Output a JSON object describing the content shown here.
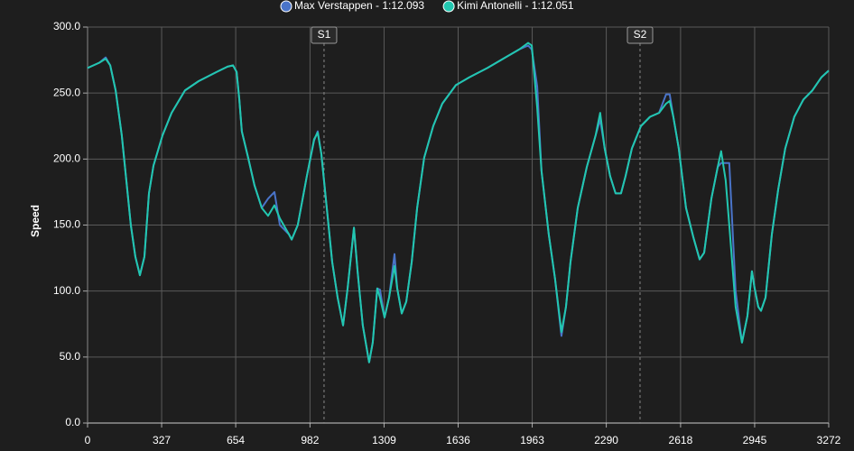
{
  "chart_data": {
    "type": "line",
    "y_label": "Speed",
    "x": [
      0,
      52,
      80,
      100,
      124,
      151,
      171,
      191,
      211,
      231,
      251,
      271,
      291,
      331,
      371,
      430,
      490,
      570,
      618,
      642,
      658,
      670,
      681,
      709,
      737,
      769,
      797,
      825,
      849,
      889,
      901,
      928,
      968,
      1000,
      1016,
      1032,
      1056,
      1080,
      1104,
      1128,
      1148,
      1176,
      1192,
      1215,
      1243,
      1259,
      1279,
      1291,
      1311,
      1331,
      1355,
      1367,
      1387,
      1407,
      1431,
      1455,
      1486,
      1526,
      1566,
      1626,
      1686,
      1765,
      1845,
      1905,
      1945,
      1961,
      1985,
      2004,
      2036,
      2064,
      2092,
      2112,
      2132,
      2164,
      2204,
      2243,
      2263,
      2283,
      2307,
      2331,
      2355,
      2375,
      2403,
      2443,
      2483,
      2523,
      2554,
      2570,
      2586,
      2610,
      2642,
      2674,
      2702,
      2722,
      2754,
      2782,
      2797,
      2817,
      2833,
      2861,
      2889,
      2913,
      2933,
      2945,
      2961,
      2973,
      2993,
      3021,
      3049,
      3080,
      3120,
      3160,
      3200,
      3240,
      3272
    ],
    "series": [
      {
        "name": "Max Verstappen - 1:12.093",
        "color": "#4a74c9",
        "values": [
          269,
          273,
          277,
          271,
          252,
          218,
          184,
          150,
          126,
          112,
          126,
          174,
          195,
          218,
          235,
          252,
          259,
          266,
          270,
          271,
          266,
          245,
          221,
          201,
          180,
          163,
          170,
          175,
          150,
          143,
          139,
          150,
          187,
          214,
          221,
          204,
          163,
          122,
          95,
          74,
          102,
          148,
          115,
          74,
          46,
          61,
          102,
          101,
          80,
          95,
          128,
          102,
          83,
          92,
          122,
          163,
          201,
          225,
          242,
          256,
          262,
          269,
          277,
          283,
          286,
          283,
          255,
          191,
          143,
          109,
          66,
          88,
          122,
          163,
          194,
          218,
          230,
          208,
          187,
          174,
          174,
          187,
          208,
          225,
          232,
          235,
          249,
          249,
          232,
          208,
          163,
          141,
          124,
          129,
          170,
          194,
          197,
          197,
          197,
          100,
          61,
          81,
          115,
          102,
          88,
          85,
          95,
          143,
          177,
          208,
          232,
          245,
          252,
          262,
          267
        ]
      },
      {
        "name": "Kimi Antonelli - 1:12.051",
        "color": "#22c7b0",
        "values": [
          269,
          273,
          276,
          271,
          252,
          218,
          184,
          150,
          126,
          112,
          126,
          174,
          195,
          218,
          235,
          252,
          259,
          266,
          270,
          271,
          266,
          245,
          221,
          201,
          180,
          163,
          157,
          165,
          155,
          143,
          139,
          150,
          187,
          215,
          220,
          204,
          163,
          122,
          95,
          74,
          102,
          148,
          115,
          74,
          46,
          61,
          102,
          95,
          80,
          95,
          119,
          102,
          83,
          92,
          122,
          163,
          201,
          225,
          242,
          256,
          262,
          269,
          277,
          283,
          288,
          286,
          239,
          191,
          143,
          109,
          69,
          88,
          122,
          163,
          194,
          218,
          235,
          208,
          187,
          174,
          174,
          187,
          208,
          225,
          232,
          235,
          242,
          244,
          232,
          208,
          163,
          141,
          124,
          129,
          170,
          194,
          206,
          184,
          150,
          88,
          61,
          81,
          115,
          102,
          88,
          85,
          95,
          143,
          177,
          208,
          232,
          245,
          252,
          262,
          267
        ]
      }
    ],
    "markers": [
      {
        "label": "S1",
        "x": 1044
      },
      {
        "label": "S2",
        "x": 2439
      }
    ],
    "xlim": [
      0,
      3272
    ],
    "xticks": [
      0,
      327,
      654,
      982,
      1309,
      1636,
      1963,
      2290,
      2618,
      2945,
      3272
    ],
    "ylim": [
      0,
      300
    ],
    "yticks": [
      {
        "value": 0,
        "label": "0.0"
      },
      {
        "value": 50,
        "label": "50.0"
      },
      {
        "value": 100,
        "label": "100.0"
      },
      {
        "value": 150,
        "label": "150.0"
      },
      {
        "value": 200,
        "label": "200.0"
      },
      {
        "value": 250,
        "label": "250.0"
      },
      {
        "value": 300,
        "label": "300.0"
      }
    ],
    "grid": true
  }
}
